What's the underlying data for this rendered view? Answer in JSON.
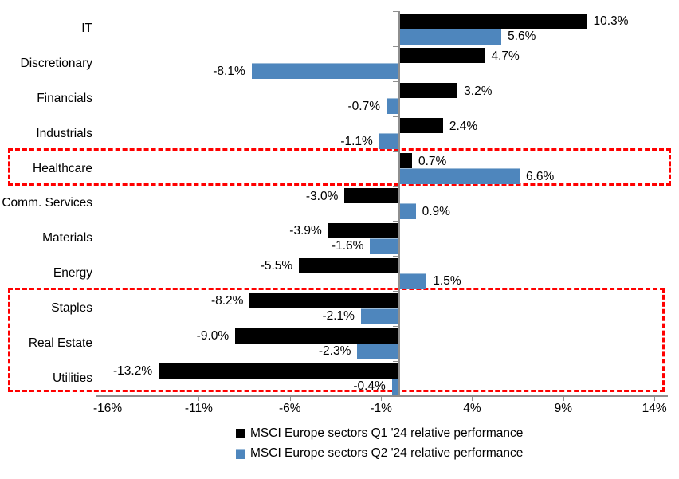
{
  "chart_data": {
    "type": "bar",
    "orientation": "horizontal",
    "title": "",
    "xlabel": "",
    "ylabel": "",
    "grid": false,
    "categories": [
      "IT",
      "Discretionary",
      "Financials",
      "Industrials",
      "Healthcare",
      "Comm. Services",
      "Materials",
      "Energy",
      "Staples",
      "Real Estate",
      "Utilities"
    ],
    "series": [
      {
        "name": "MSCI Europe sectors Q1 '24 relative performance",
        "color": "#000000",
        "values": [
          10.3,
          4.7,
          3.2,
          2.4,
          0.7,
          -3.0,
          -3.9,
          -5.5,
          -8.2,
          -9.0,
          -13.2
        ],
        "labels": [
          "10.3%",
          "4.7%",
          "3.2%",
          "2.4%",
          "0.7%",
          "-3.0%",
          "-3.9%",
          "-5.5%",
          "-8.2%",
          "-9.0%",
          "-13.2%"
        ]
      },
      {
        "name": "MSCI Europe sectors Q2 '24 relative performance",
        "color": "#4e86bd",
        "values": [
          5.6,
          -8.1,
          -0.7,
          -1.1,
          6.6,
          0.9,
          -1.6,
          1.5,
          -2.1,
          -2.3,
          -0.4
        ],
        "labels": [
          "5.6%",
          "-8.1%",
          "-0.7%",
          "-1.1%",
          "6.6%",
          "0.9%",
          "-1.6%",
          "1.5%",
          "-2.1%",
          "-2.3%",
          "-0.4%"
        ]
      }
    ],
    "x_axis": {
      "ticks": [
        -16,
        -11,
        -6,
        -1,
        4,
        9,
        14
      ],
      "tick_labels": [
        "-16%",
        "-11%",
        "-6%",
        "-1%",
        "4%",
        "9%",
        "14%"
      ],
      "xlim": [
        -16.6,
        14.7
      ]
    },
    "legend": {
      "position": "bottom",
      "entries": [
        {
          "label": "MSCI Europe sectors Q1 '24 relative performance",
          "color": "#000000"
        },
        {
          "label": "MSCI Europe sectors Q2 '24 relative performance",
          "color": "#4e86bd"
        }
      ]
    },
    "highlights": [
      {
        "name": "healthcare",
        "categories": [
          "Healthcare"
        ],
        "color": "#ff0000",
        "style": "dashed"
      },
      {
        "name": "staples-realestate-utilities",
        "categories": [
          "Staples",
          "Real Estate",
          "Utilities"
        ],
        "color": "#ff0000",
        "style": "dashed"
      }
    ]
  }
}
